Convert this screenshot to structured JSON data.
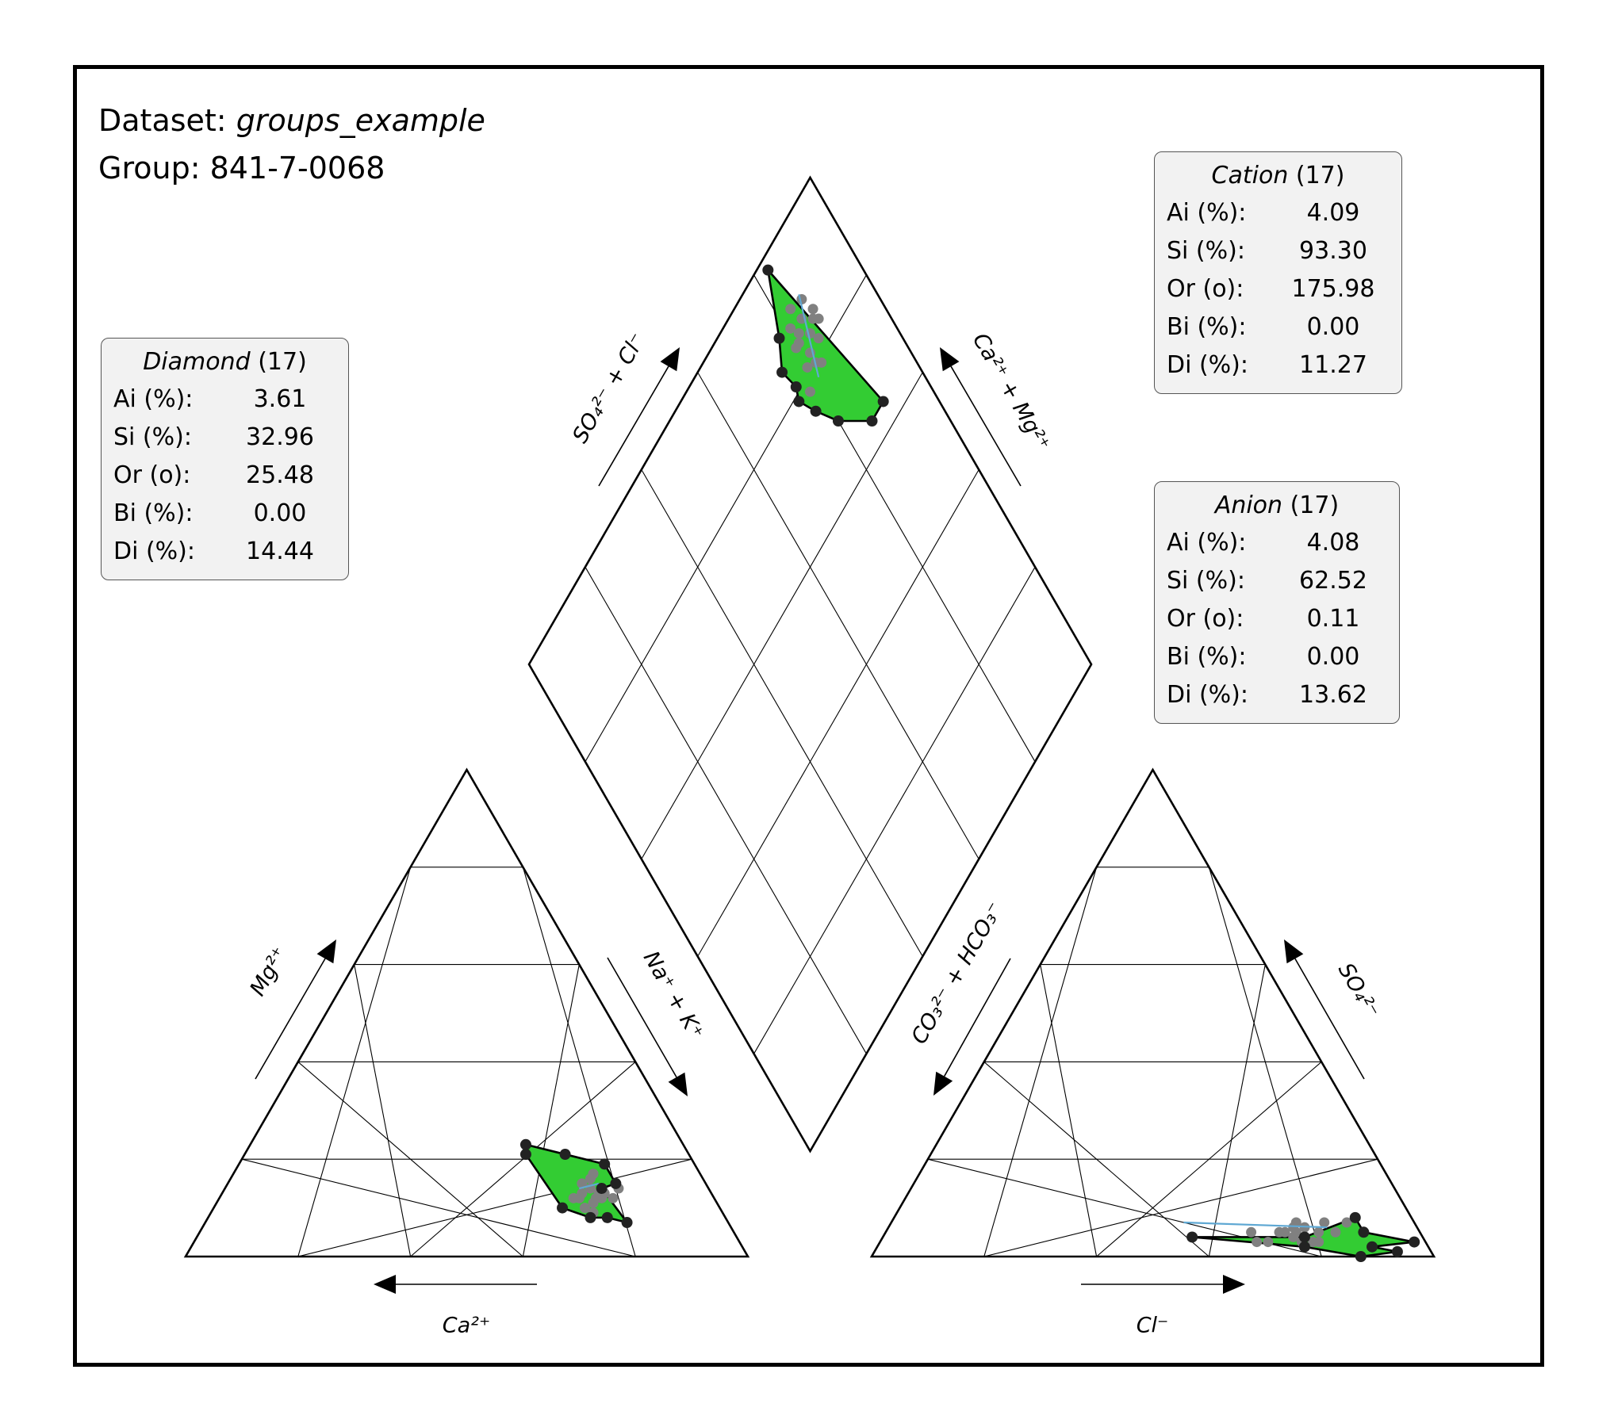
{
  "header": {
    "dataset_label": "Dataset: ",
    "dataset_name": "groups_example",
    "group_label": "Group: ",
    "group_name": "841-7-0068"
  },
  "stat_boxes": [
    {
      "key": "diamond",
      "title": "Diamond",
      "count": "(17)",
      "rows": [
        {
          "label": "Ai (%):",
          "value": "3.61"
        },
        {
          "label": "Si (%):",
          "value": "32.96"
        },
        {
          "label": "Or (o):",
          "value": "25.48"
        },
        {
          "label": "Bi (%):",
          "value": "0.00"
        },
        {
          "label": "Di (%):",
          "value": "14.44"
        }
      ]
    },
    {
      "key": "cation",
      "title": "Cation",
      "count": "(17)",
      "rows": [
        {
          "label": "Ai (%):",
          "value": "4.09"
        },
        {
          "label": "Si (%):",
          "value": "93.30"
        },
        {
          "label": "Or (o):",
          "value": "175.98"
        },
        {
          "label": "Bi (%):",
          "value": "0.00"
        },
        {
          "label": "Di (%):",
          "value": "11.27"
        }
      ]
    },
    {
      "key": "anion",
      "title": "Anion",
      "count": "(17)",
      "rows": [
        {
          "label": "Ai (%):",
          "value": "4.08"
        },
        {
          "label": "Si (%):",
          "value": "62.52"
        },
        {
          "label": "Or (o):",
          "value": "0.11"
        },
        {
          "label": "Bi (%):",
          "value": "0.00"
        },
        {
          "label": "Di (%):",
          "value": "13.62"
        }
      ]
    }
  ],
  "chart_data": {
    "type": "scatter",
    "subtype": "piper-diagram",
    "grid_step_percent": 20,
    "colors": {
      "region_fill": "#33cc33",
      "hull_point": "#222222",
      "sample_point": "#808080",
      "axis_line": "#5fa8d3",
      "outline": "#000000"
    },
    "axis_labels": {
      "cation_left": "Mg²⁺",
      "cation_right": "Na⁺ + K⁺",
      "cation_bottom": "Ca²⁺",
      "anion_left": "CO₃²⁻ + HCO₃⁻",
      "anion_right": "SO₄²⁻",
      "anion_bottom": "Cl⁻",
      "diamond_left": "SO₄²⁻ + Cl⁻",
      "diamond_right": "Ca²⁺ + Mg²⁺"
    },
    "cation_triangle": {
      "components": [
        "Ca",
        "Mg",
        "Na+K"
      ],
      "hull": [
        [
          28,
          10
        ],
        [
          19,
          14
        ],
        [
          16,
          15
        ],
        [
          16,
          19
        ],
        [
          22,
          21
        ],
        [
          28,
          23
        ],
        [
          29,
          21
        ],
        [
          21,
          8
        ],
        [
          18,
          7
        ],
        [
          24,
          8
        ]
      ],
      "samples": [
        [
          23,
          13
        ],
        [
          20,
          12
        ],
        [
          21,
          12
        ],
        [
          22,
          11
        ],
        [
          19,
          13
        ],
        [
          21,
          14
        ],
        [
          18,
          12
        ],
        [
          24,
          10
        ],
        [
          20,
          16
        ],
        [
          19,
          17
        ],
        [
          25,
          12
        ],
        [
          21,
          12
        ],
        [
          16,
          14
        ],
        [
          23,
          9
        ],
        [
          20,
          13
        ],
        [
          22,
          15
        ],
        [
          24,
          12
        ]
      ],
      "axis_line": [
        [
          23,
          14
        ],
        [
          19,
          15
        ]
      ]
    },
    "anion_triangle": {
      "components": [
        "CO3+HCO3",
        "SO4",
        "Cl"
      ],
      "hull": [
        [
          10,
          8
        ],
        [
          21,
          4
        ],
        [
          13,
          0
        ],
        [
          10,
          2
        ],
        [
          10,
          5
        ],
        [
          6,
          1
        ],
        [
          2,
          3
        ],
        [
          41,
          4
        ],
        [
          22,
          2
        ]
      ],
      "samples": [
        [
          22,
          6
        ],
        [
          21,
          7
        ],
        [
          16,
          7
        ],
        [
          12,
          7
        ],
        [
          18,
          5
        ],
        [
          20,
          6
        ],
        [
          25,
          5
        ],
        [
          28,
          3
        ],
        [
          30,
          3
        ],
        [
          23,
          4
        ],
        [
          24,
          5
        ],
        [
          20,
          3
        ],
        [
          15,
          5
        ],
        [
          19,
          3
        ],
        [
          22,
          3
        ],
        [
          22,
          5
        ],
        [
          30,
          5
        ]
      ],
      "axis_line": [
        [
          41,
          7
        ],
        [
          16,
          6
        ]
      ]
    },
    "diamond": {
      "components": [
        "Ca+Mg",
        "SO4+Cl"
      ],
      "hull": [
        [
          83,
          98
        ],
        [
          78,
          89
        ],
        [
          75,
          85
        ],
        [
          76,
          81
        ],
        [
          75,
          79
        ],
        [
          77,
          75
        ],
        [
          80,
          70
        ],
        [
          86,
          64
        ],
        [
          90,
          64
        ]
      ],
      "samples": [
        [
          83,
          90
        ],
        [
          81,
          85
        ],
        [
          80,
          85
        ],
        [
          86,
          89
        ],
        [
          82,
          82
        ],
        [
          78,
          78
        ],
        [
          87,
          86
        ],
        [
          85,
          82
        ],
        [
          87,
          84
        ],
        [
          82,
          86
        ],
        [
          84,
          87
        ],
        [
          80,
          81
        ],
        [
          83,
          79
        ],
        [
          86,
          85
        ],
        [
          81,
          88
        ],
        [
          84,
          84
        ],
        [
          82,
          80
        ]
      ],
      "axis_line": [
        [
          86,
          90
        ],
        [
          81,
          78
        ]
      ]
    }
  }
}
